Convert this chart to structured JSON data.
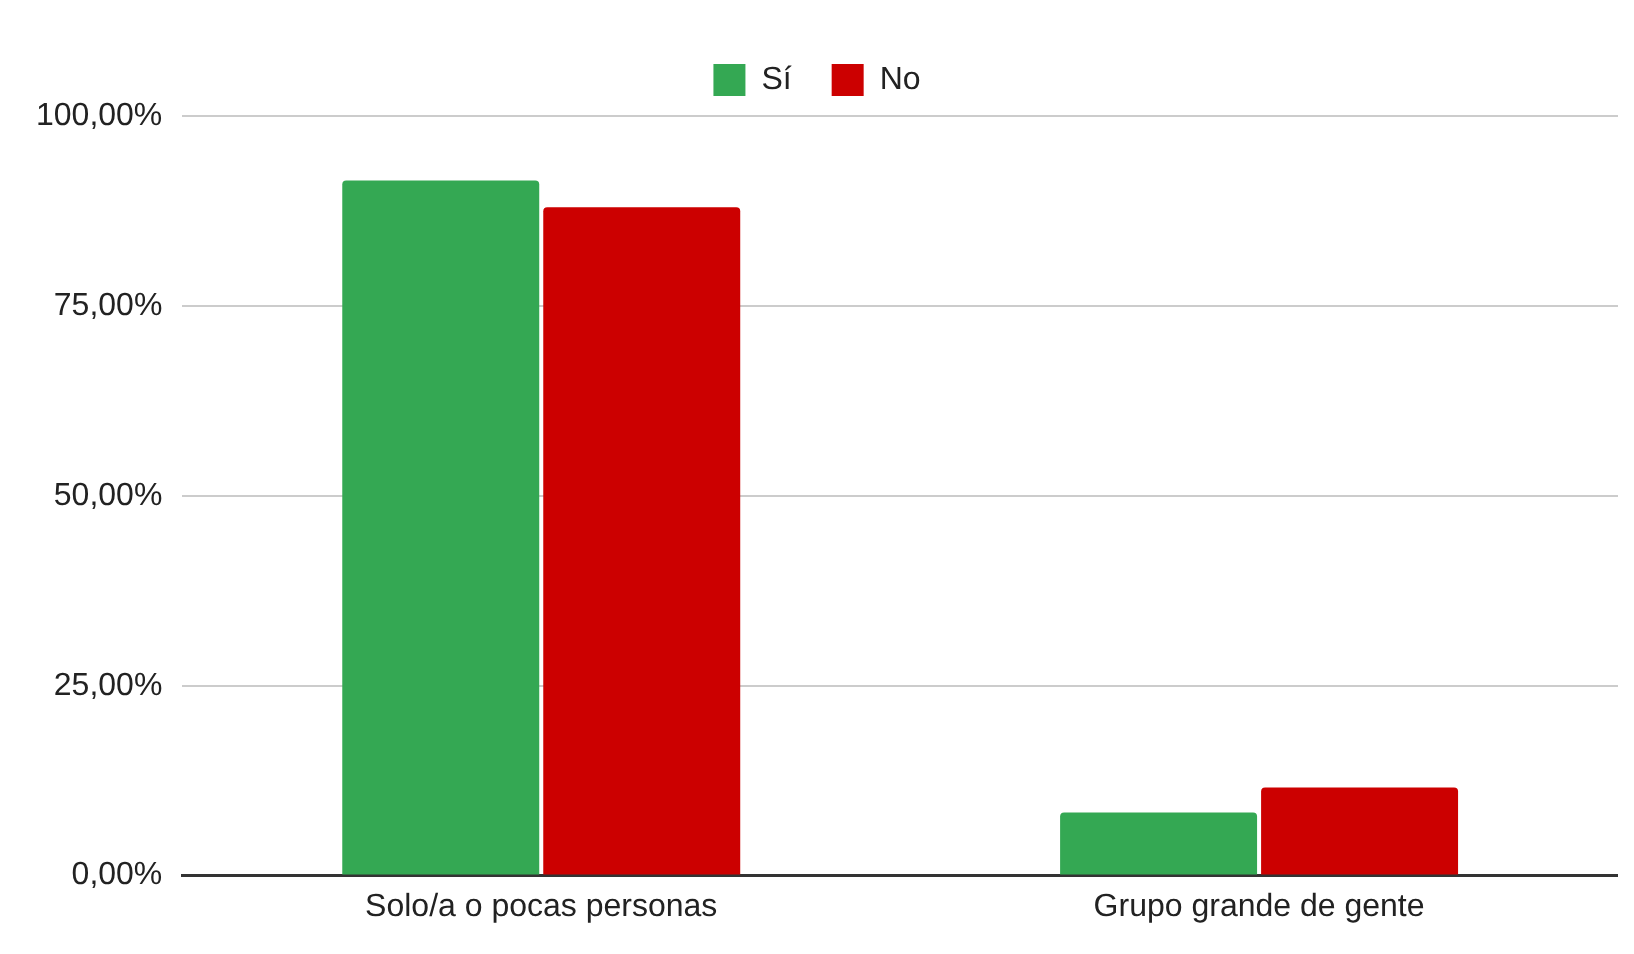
{
  "chart_data": {
    "type": "bar",
    "categories": [
      "Solo/a o pocas personas",
      "Grupo grande de gente"
    ],
    "series": [
      {
        "name": "Sí",
        "color": "#34a853",
        "values": [
          91.5,
          8.3
        ]
      },
      {
        "name": "No",
        "color": "#cc0000",
        "values": [
          88,
          11.6
        ]
      }
    ],
    "ylim": [
      0,
      100
    ],
    "yticks": [
      {
        "value": 0,
        "label": "0,00%"
      },
      {
        "value": 25,
        "label": "25,00%"
      },
      {
        "value": 50,
        "label": "50,00%"
      },
      {
        "value": 75,
        "label": "75,00%"
      },
      {
        "value": 100,
        "label": "100,00%"
      }
    ],
    "grid": "y",
    "legend": "top"
  }
}
